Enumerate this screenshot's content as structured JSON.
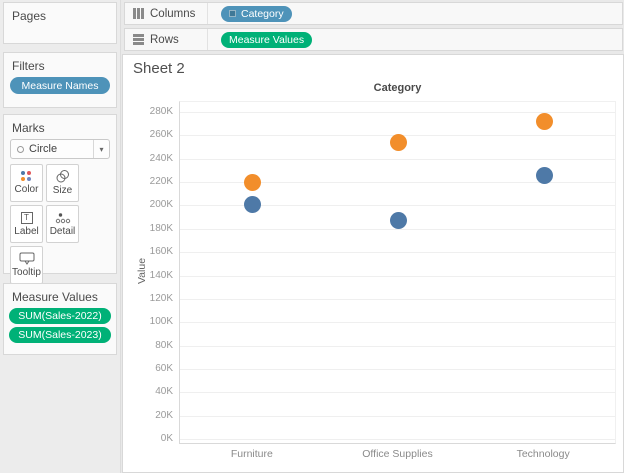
{
  "shelves": {
    "columns": {
      "label": "Columns",
      "pills": [
        {
          "text": "Category",
          "type": "dimension"
        }
      ]
    },
    "rows": {
      "label": "Rows",
      "pills": [
        {
          "text": "Measure Values",
          "type": "measure"
        }
      ]
    }
  },
  "sidebar": {
    "pages": {
      "title": "Pages"
    },
    "filters": {
      "title": "Filters",
      "pills": [
        {
          "text": "Measure Names"
        }
      ]
    },
    "marks": {
      "title": "Marks",
      "mark_type": "Circle",
      "buttons": [
        {
          "label": "Color",
          "icon": "color-dots-icon"
        },
        {
          "label": "Size",
          "icon": "size-circles-icon"
        },
        {
          "label": "Label",
          "icon": "label-t-icon"
        },
        {
          "label": "Detail",
          "icon": "detail-dots-icon"
        },
        {
          "label": "Tooltip",
          "icon": "tooltip-bubble-icon"
        }
      ],
      "pills": [
        {
          "text": "Measure Names",
          "icon": "color-dots-icon"
        }
      ]
    },
    "measure_values": {
      "title": "Measure Values",
      "pills": [
        {
          "text": "SUM(Sales-2022)"
        },
        {
          "text": "SUM(Sales-2023)"
        }
      ]
    }
  },
  "sheet": {
    "title": "Sheet 2"
  },
  "chart_data": {
    "type": "scatter",
    "title": "Sheet 2",
    "column_header": "Category",
    "ylabel": "Value",
    "categories": [
      "Furniture",
      "Office Supplies",
      "Technology"
    ],
    "series": [
      {
        "name": "SUM(Sales-2022)",
        "color": "#4e79a7",
        "values": [
          201000,
          187000,
          226000
        ]
      },
      {
        "name": "SUM(Sales-2023)",
        "color": "#f28e2b",
        "values": [
          220000,
          254000,
          272000
        ]
      }
    ],
    "ylim": [
      0,
      290000
    ],
    "ytick_step": 20000,
    "ytick_labels": [
      "0K",
      "20K",
      "40K",
      "60K",
      "80K",
      "100K",
      "120K",
      "140K",
      "160K",
      "180K",
      "200K",
      "220K",
      "240K",
      "260K",
      "280K"
    ],
    "grid": "horizontal",
    "legend": "none",
    "mark": "circle"
  },
  "colors": {
    "dimension_pill": "#4e93b9",
    "measure_pill": "#00b177",
    "series_blue": "#4e79a7",
    "series_orange": "#f28e2b",
    "background": "#e9e9e9"
  }
}
